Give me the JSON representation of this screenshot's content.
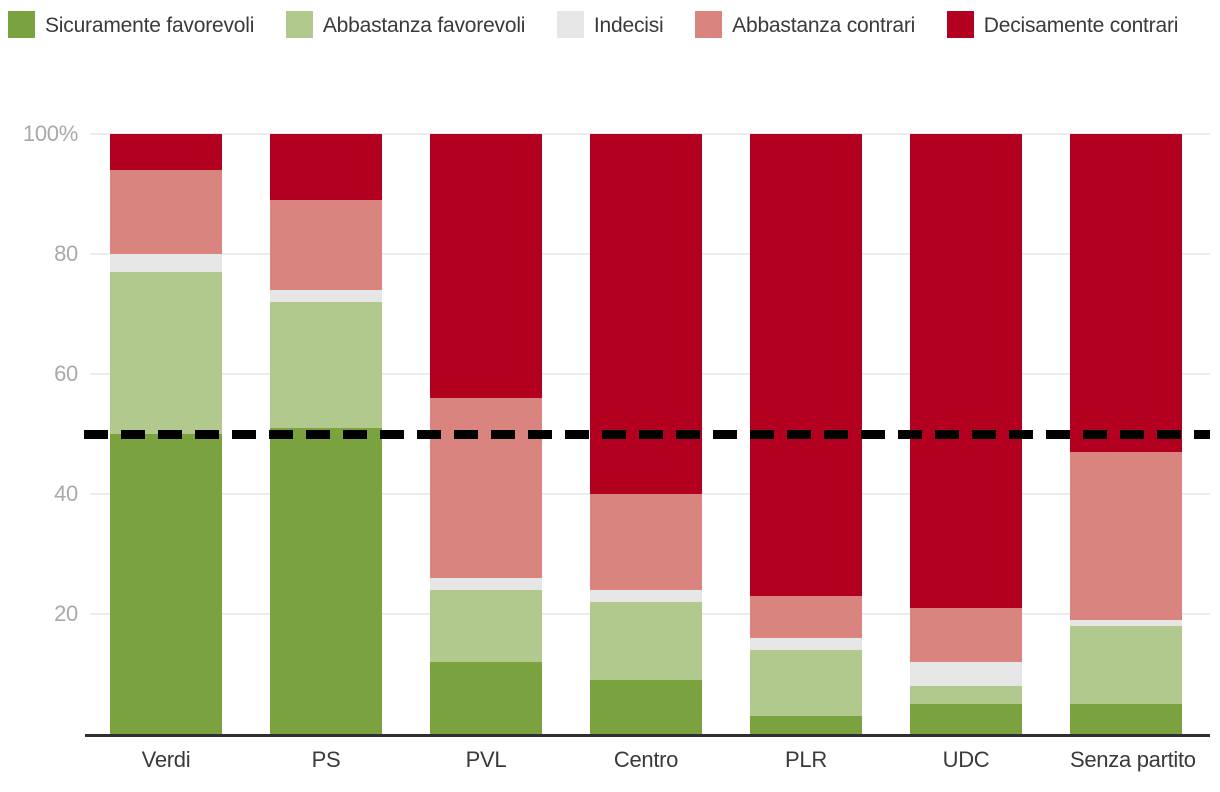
{
  "legend": {
    "items": [
      {
        "label": "Sicuramente favorevoli",
        "color": "#7aa340"
      },
      {
        "label": "Abbastanza favorevoli",
        "color": "#b1c98c"
      },
      {
        "label": "Indecisi",
        "color": "#e6e6e6"
      },
      {
        "label": "Abbastanza contrari",
        "color": "#d9847e"
      },
      {
        "label": "Decisamente contrari",
        "color": "#b30021"
      }
    ]
  },
  "chart_data": {
    "type": "bar",
    "stacked": true,
    "orientation": "vertical",
    "categories": [
      "Verdi",
      "PS",
      "PVL",
      "Centro",
      "PLR",
      "UDC",
      "Senza partito"
    ],
    "series": [
      {
        "name": "Sicuramente favorevoli",
        "color": "#7aa340",
        "values": [
          50,
          51,
          12,
          9,
          3,
          5,
          5
        ]
      },
      {
        "name": "Abbastanza favorevoli",
        "color": "#b1c98c",
        "values": [
          27,
          21,
          12,
          13,
          11,
          3,
          13
        ]
      },
      {
        "name": "Indecisi",
        "color": "#e6e6e6",
        "values": [
          3,
          2,
          2,
          2,
          2,
          4,
          1
        ]
      },
      {
        "name": "Abbastanza contrari",
        "color": "#d9847e",
        "values": [
          14,
          15,
          30,
          16,
          7,
          9,
          28
        ]
      },
      {
        "name": "Decisamente contrari",
        "color": "#b30021",
        "values": [
          6,
          11,
          44,
          60,
          77,
          79,
          53
        ]
      }
    ],
    "y_axis": {
      "min": 0,
      "max": 100,
      "ticks": [
        100,
        80,
        60,
        40,
        20
      ],
      "tick_labels": [
        "100%",
        "80",
        "60",
        "40",
        "20"
      ],
      "unit": "%"
    },
    "reference_line": {
      "value": 50,
      "style": "dashed",
      "color": "#000000"
    },
    "grid": true,
    "legend_position": "top"
  }
}
